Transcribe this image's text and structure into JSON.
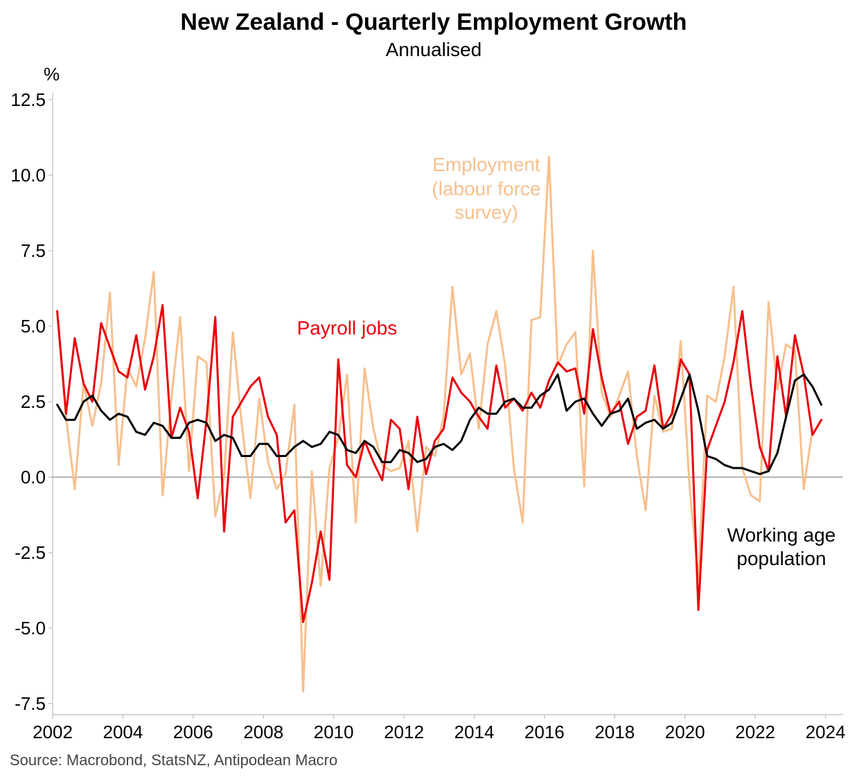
{
  "chart_data": {
    "type": "line",
    "title": "New Zealand - Quarterly Employment Growth",
    "subtitle": "Annualised",
    "ylabel": "%",
    "ylim": [
      -7.5,
      12.5
    ],
    "yticks": [
      12.5,
      10.0,
      7.5,
      5.0,
      2.5,
      0.0,
      -2.5,
      -5.0,
      -7.5
    ],
    "ytick_labels": [
      "12.5",
      "10.0",
      "7.5",
      "5.0",
      "2.5",
      "0.0",
      "-2.5",
      "-5.0",
      "-7.5"
    ],
    "xlim": [
      2002,
      2024.5
    ],
    "xticks": [
      2002,
      2004,
      2006,
      2008,
      2010,
      2012,
      2014,
      2016,
      2018,
      2020,
      2022,
      2024
    ],
    "xtick_labels": [
      "2002",
      "2004",
      "2006",
      "2008",
      "2010",
      "2012",
      "2014",
      "2016",
      "2018",
      "2020",
      "2022",
      "2024"
    ],
    "x_start": 2002.13,
    "x_step": 0.25,
    "source": "Source: Macrobond, StatsNZ, Antipodean Macro",
    "annotations": {
      "employment": [
        "Employment",
        "(labour force",
        "survey)"
      ],
      "payroll": [
        "Payroll jobs"
      ],
      "population": [
        "Working age",
        "population"
      ]
    },
    "colors": {
      "employment": "#F7C08E",
      "payroll": "#E8000B",
      "population": "#000000",
      "axis": "#bbbbbb",
      "zero": "#888888"
    },
    "series": [
      {
        "name": "Employment (labour force survey)",
        "key": "employment",
        "values": [
          5.4,
          2.0,
          -0.4,
          3.1,
          1.7,
          3.1,
          6.1,
          0.4,
          3.6,
          3.0,
          4.6,
          6.8,
          -0.6,
          2.6,
          5.3,
          0.2,
          4.0,
          3.8,
          -1.3,
          0.0,
          4.8,
          1.8,
          -0.7,
          2.6,
          0.5,
          -0.4,
          0.1,
          2.4,
          -7.1,
          0.2,
          -3.6,
          0.3,
          1.3,
          3.4,
          -1.5,
          3.6,
          1.6,
          0.4,
          0.2,
          0.3,
          1.2,
          -1.8,
          1.0,
          0.7,
          2.0,
          6.3,
          3.4,
          4.1,
          1.6,
          4.4,
          5.5,
          3.7,
          0.3,
          -1.5,
          5.2,
          5.3,
          10.6,
          3.7,
          4.4,
          4.8,
          -0.3,
          7.5,
          2.8,
          2.0,
          2.7,
          3.5,
          0.7,
          -1.1,
          2.7,
          1.5,
          1.6,
          4.5,
          -0.3,
          -3.4,
          2.7,
          2.5,
          4.0,
          6.3,
          0.3,
          -0.6,
          -0.8,
          5.8,
          2.9,
          4.4,
          4.2,
          -0.4,
          1.6
        ]
      },
      {
        "name": "Payroll jobs",
        "key": "payroll",
        "values": [
          5.5,
          2.1,
          4.6,
          3.1,
          2.5,
          5.1,
          4.3,
          3.5,
          3.3,
          4.7,
          2.9,
          4.0,
          5.7,
          1.3,
          2.3,
          1.5,
          -0.7,
          1.9,
          5.3,
          -1.8,
          2.0,
          2.5,
          3.0,
          3.3,
          2.0,
          1.4,
          -1.5,
          -1.1,
          -4.8,
          -3.5,
          -1.8,
          -3.4,
          3.9,
          0.4,
          0.0,
          1.2,
          0.5,
          -0.1,
          1.9,
          1.6,
          -0.4,
          2.0,
          0.1,
          1.2,
          1.6,
          3.3,
          2.8,
          2.5,
          2.0,
          1.6,
          3.7,
          2.3,
          2.6,
          2.2,
          2.8,
          2.3,
          3.2,
          3.8,
          3.5,
          3.6,
          2.1,
          4.9,
          3.3,
          2.1,
          2.5,
          1.1,
          2.0,
          2.2,
          3.7,
          1.6,
          2.1,
          3.9,
          3.4,
          -4.4,
          0.9,
          1.7,
          2.5,
          3.8,
          5.5,
          3.0,
          1.0,
          0.2,
          4.0,
          2.0,
          4.7,
          3.4,
          1.4,
          1.9
        ]
      },
      {
        "name": "Working age population",
        "key": "population",
        "values": [
          2.4,
          1.9,
          1.9,
          2.5,
          2.7,
          2.2,
          1.9,
          2.1,
          2.0,
          1.5,
          1.4,
          1.8,
          1.7,
          1.3,
          1.3,
          1.8,
          1.9,
          1.8,
          1.2,
          1.4,
          1.3,
          0.7,
          0.7,
          1.1,
          1.1,
          0.7,
          0.7,
          1.0,
          1.2,
          1.0,
          1.1,
          1.5,
          1.4,
          0.9,
          0.8,
          1.2,
          1.0,
          0.5,
          0.5,
          0.9,
          0.8,
          0.5,
          0.6,
          1.0,
          1.1,
          0.9,
          1.2,
          1.9,
          2.3,
          2.1,
          2.1,
          2.5,
          2.6,
          2.3,
          2.3,
          2.7,
          2.9,
          3.4,
          2.2,
          2.5,
          2.6,
          2.1,
          1.7,
          2.1,
          2.2,
          2.6,
          1.6,
          1.8,
          1.9,
          1.6,
          1.8,
          2.6,
          3.4,
          2.2,
          0.7,
          0.6,
          0.4,
          0.3,
          0.3,
          0.2,
          0.1,
          0.2,
          0.8,
          2.0,
          3.2,
          3.4,
          3.0,
          2.4
        ]
      }
    ]
  }
}
